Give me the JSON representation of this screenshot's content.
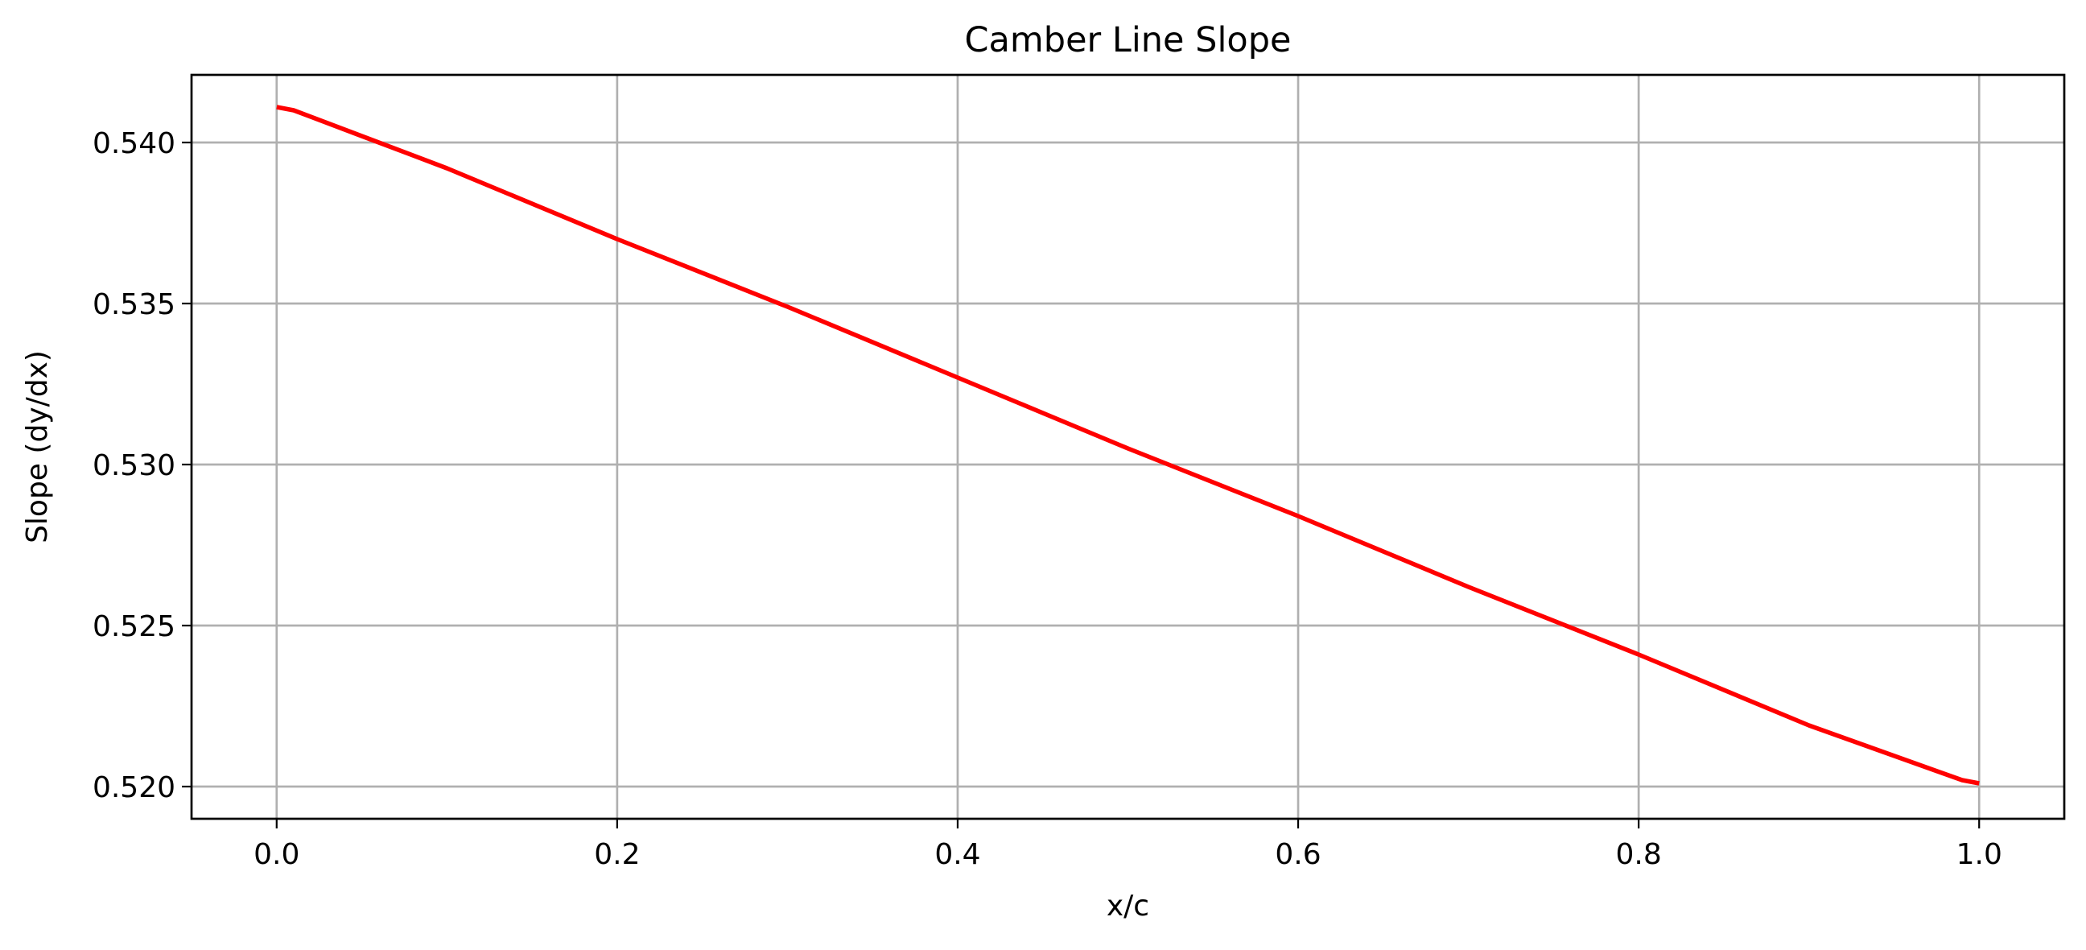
{
  "chart_data": {
    "type": "line",
    "title": "Camber Line Slope",
    "xlabel": "x/c",
    "ylabel": "Slope (dy/dx)",
    "xlim": [
      -0.05,
      1.05
    ],
    "ylim": [
      0.519,
      0.5421
    ],
    "x_ticks": [
      {
        "value": 0.0,
        "label": "0.0"
      },
      {
        "value": 0.2,
        "label": "0.2"
      },
      {
        "value": 0.4,
        "label": "0.4"
      },
      {
        "value": 0.6,
        "label": "0.6"
      },
      {
        "value": 0.8,
        "label": "0.8"
      },
      {
        "value": 1.0,
        "label": "1.0"
      }
    ],
    "y_ticks": [
      {
        "value": 0.52,
        "label": "0.520"
      },
      {
        "value": 0.525,
        "label": "0.525"
      },
      {
        "value": 0.53,
        "label": "0.530"
      },
      {
        "value": 0.535,
        "label": "0.535"
      },
      {
        "value": 0.54,
        "label": "0.540"
      }
    ],
    "grid": true,
    "series": [
      {
        "color": "#ff0000",
        "x": [
          0.0,
          0.01,
          0.05,
          0.1,
          0.2,
          0.3,
          0.4,
          0.5,
          0.6,
          0.7,
          0.8,
          0.9,
          0.99,
          1.0
        ],
        "y": [
          0.5411,
          0.541,
          0.5402,
          0.5392,
          0.537,
          0.5349,
          0.5327,
          0.5305,
          0.5284,
          0.5262,
          0.5241,
          0.5219,
          0.5202,
          0.5201
        ]
      }
    ]
  }
}
